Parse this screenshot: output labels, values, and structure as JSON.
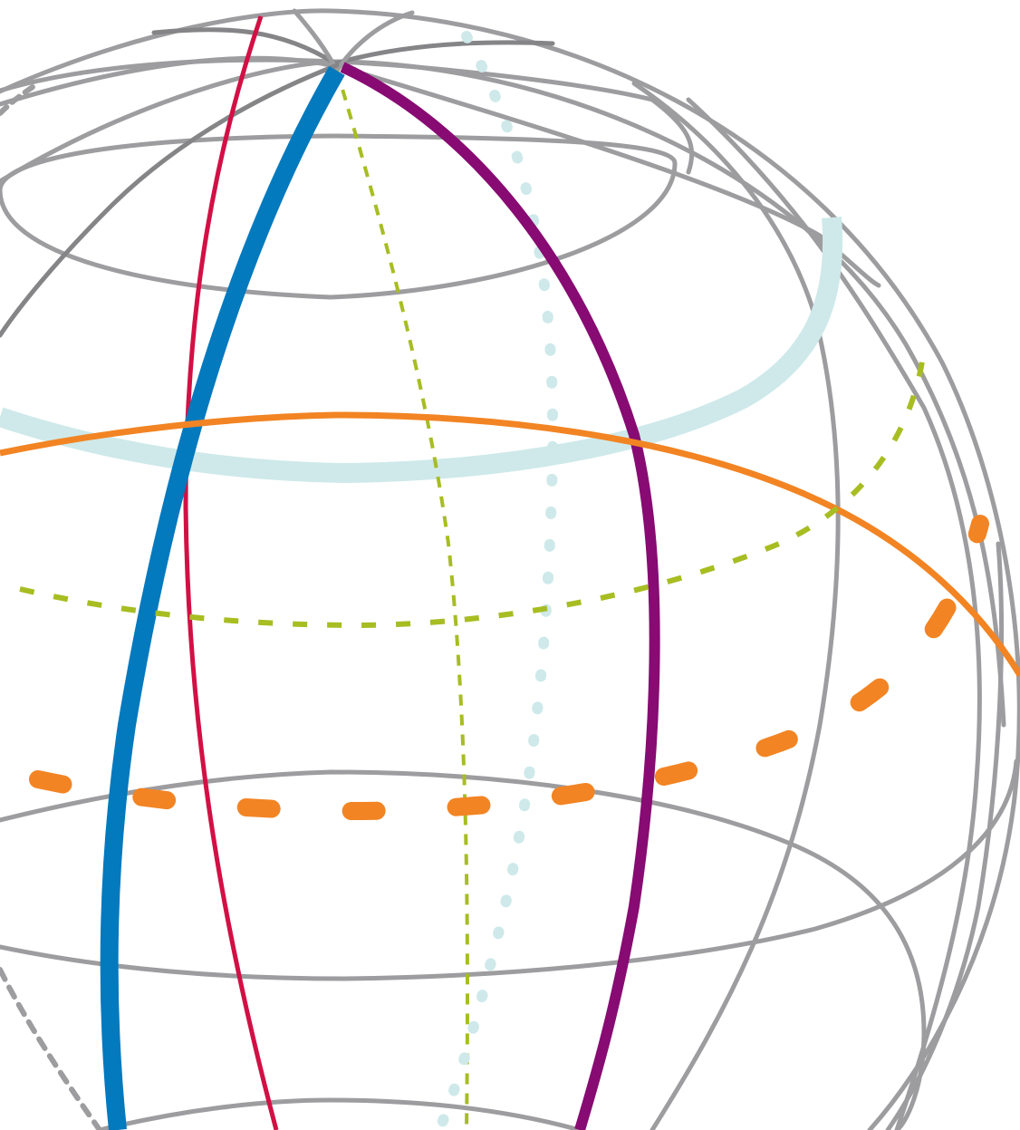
{
  "diagram": {
    "subject": "sphere-wireframe",
    "background": "#ffffff",
    "palette": {
      "grid": "#9d9c9f",
      "grid_dark": "#858587",
      "blue": "#0379be",
      "crimson": "#d21045",
      "purple": "#870b72",
      "light_blue": "#cfe9ea",
      "orange": "#f28423",
      "olive": "#a7bd22"
    },
    "curves": [
      {
        "name": "great-circle-meridian-blue",
        "color": "blue",
        "style": "solid"
      },
      {
        "name": "great-circle-meridian-crimson",
        "color": "crimson",
        "style": "solid"
      },
      {
        "name": "great-circle-meridian-purple",
        "color": "purple",
        "style": "solid"
      },
      {
        "name": "latitude-circle-light-blue",
        "color": "light_blue",
        "style": "solid"
      },
      {
        "name": "latitude-circle-orange",
        "color": "orange",
        "style": "solid"
      },
      {
        "name": "equator-dashed-orange",
        "color": "orange",
        "style": "dashed"
      },
      {
        "name": "parallel-dotted-olive",
        "color": "olive",
        "style": "dotted"
      },
      {
        "name": "meridian-dashed-olive",
        "color": "olive",
        "style": "dashed"
      },
      {
        "name": "meridian-dotted-light-blue",
        "color": "light_blue",
        "style": "dotted"
      }
    ]
  }
}
